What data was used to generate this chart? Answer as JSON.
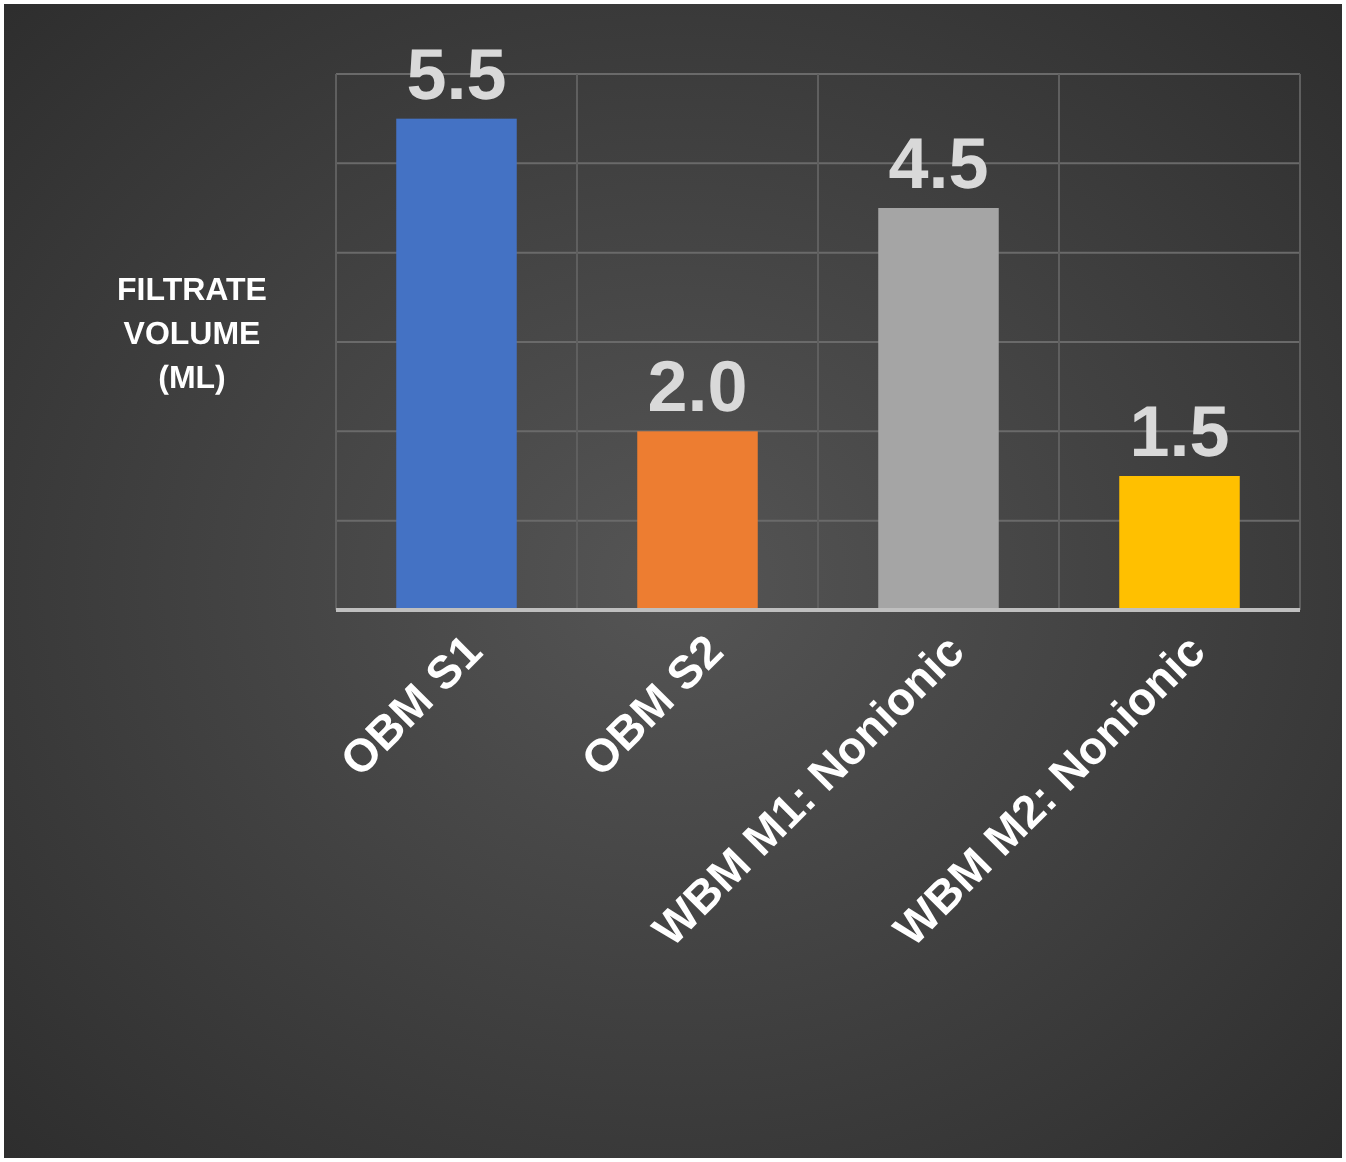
{
  "chart_data": {
    "type": "bar",
    "ylabel": "FILTRATE VOLUME (ML)",
    "categories": [
      "OBM S1",
      "OBM S2",
      "WBM M1: Nonionic",
      "WBM M2: Nonionic"
    ],
    "values": [
      5.5,
      2.0,
      4.5,
      1.5
    ],
    "colors": [
      "#4472c4",
      "#ed7d31",
      "#a5a5a5",
      "#ffc000"
    ],
    "value_labels": [
      "5.5",
      "2.0",
      "4.5",
      "1.5"
    ],
    "ylim": [
      0,
      6
    ],
    "yticks": [
      {
        "value": 0,
        "label": null
      },
      {
        "value": 1,
        "label": null
      },
      {
        "value": 2,
        "label": null
      },
      {
        "value": 3,
        "label": null
      },
      {
        "value": 4,
        "label": null
      },
      {
        "value": 5,
        "label": null
      },
      {
        "value": 6,
        "label": null
      }
    ],
    "grid": true,
    "tick_labels": "x"
  }
}
